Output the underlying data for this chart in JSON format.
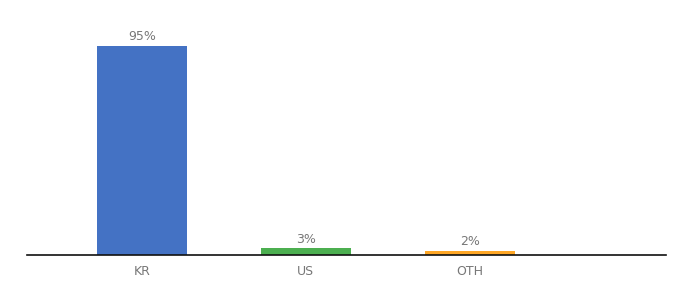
{
  "categories": [
    "KR",
    "US",
    "OTH"
  ],
  "values": [
    95,
    3,
    2
  ],
  "bar_colors": [
    "#4472c4",
    "#4caf50",
    "#ffa726"
  ],
  "labels": [
    "95%",
    "3%",
    "2%"
  ],
  "ylim": [
    0,
    105
  ],
  "background_color": "#ffffff",
  "label_fontsize": 9,
  "tick_fontsize": 9,
  "bar_width": 0.55,
  "bar_positions": [
    1,
    2,
    3
  ],
  "xlim": [
    0.3,
    4.2
  ]
}
